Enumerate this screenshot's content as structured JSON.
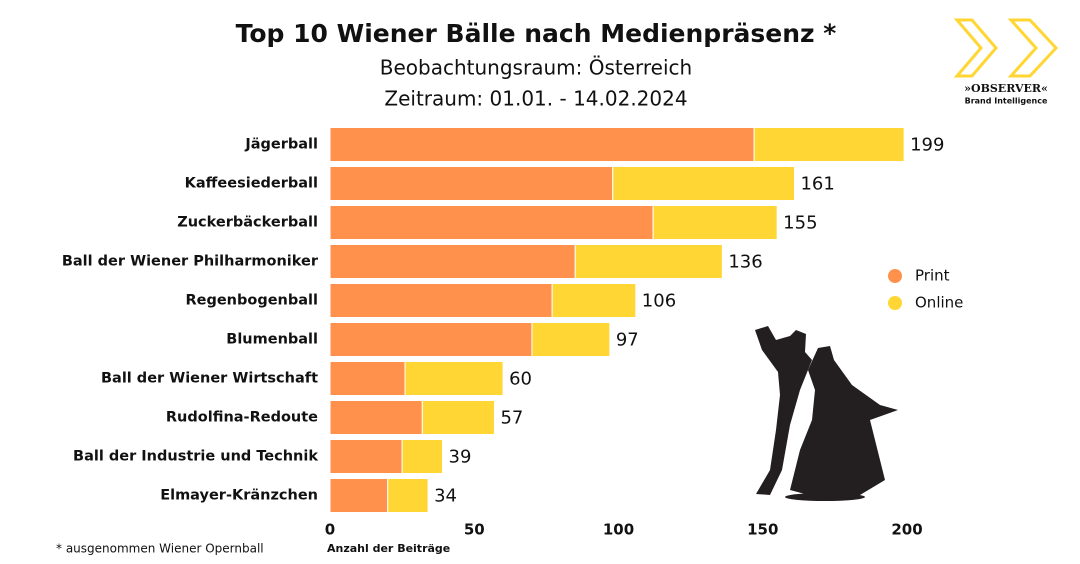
{
  "chart_data": {
    "type": "stacked-bar-horizontal",
    "title": "Top 10 Wiener Bälle nach Medienpräsenz *",
    "subtitle": [
      "Beobachtungsraum: Österreich",
      "Zeitraum: 01.01. - 14.02.2024"
    ],
    "categories": [
      "Jägerball",
      "Kaffeesiederball",
      "Zuckerbäckerball",
      "Ball der Wiener Philharmoniker",
      "Regenbogenball",
      "Blumenball",
      "Ball der Wiener Wirtschaft",
      "Rudolfina-Redoute",
      "Ball der Industrie und Technik",
      "Elmayer-Kränzchen"
    ],
    "series": [
      {
        "name": "Print",
        "color": "#ff914d",
        "values": [
          147,
          98,
          112,
          85,
          77,
          70,
          26,
          32,
          25,
          20
        ]
      },
      {
        "name": "Online",
        "color": "#ffd633",
        "values": [
          52,
          63,
          43,
          51,
          29,
          27,
          34,
          25,
          14,
          14
        ]
      }
    ],
    "totals": [
      199,
      161,
      155,
      136,
      106,
      97,
      60,
      57,
      39,
      34
    ],
    "xlim": [
      0,
      200
    ],
    "xticks": [
      0,
      50,
      100,
      150,
      200
    ],
    "xlabel": "Anzahl der Beiträge",
    "footnote": "* ausgenommen Wiener Opernball",
    "logo": {
      "name": "»OBSERVER«",
      "tagline": "Brand Intelligence"
    }
  }
}
